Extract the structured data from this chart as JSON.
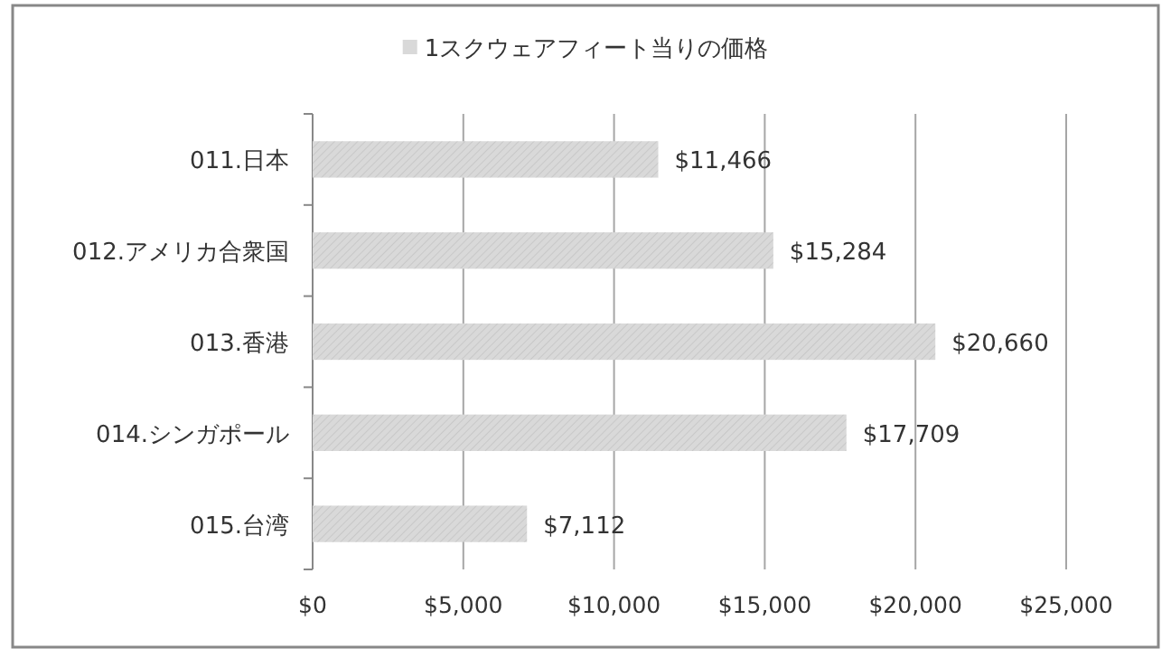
{
  "chart_data": {
    "type": "bar",
    "orientation": "horizontal",
    "categories": [
      "011.日本",
      "012.アメリカ合衆国",
      "013.香港",
      "014.シンガポール",
      "015.台湾"
    ],
    "series": [
      {
        "name": "1スクウェアフィート当りの価格",
        "color": "#d9d9d9",
        "values": [
          11466,
          15284,
          20660,
          17709,
          7112
        ],
        "value_labels": [
          "$11,466",
          "$15,284",
          "$20,660",
          "$17,709",
          "$7,112"
        ]
      }
    ],
    "xlim": [
      0,
      25000
    ],
    "xticks": [
      {
        "value": 0,
        "label": "$0"
      },
      {
        "value": 5000,
        "label": "$5,000"
      },
      {
        "value": 10000,
        "label": "$10,000"
      },
      {
        "value": 15000,
        "label": "$15,000"
      },
      {
        "value": 20000,
        "label": "$20,000"
      },
      {
        "value": 25000,
        "label": "$25,000"
      }
    ],
    "grid": "x",
    "legend": "top"
  }
}
